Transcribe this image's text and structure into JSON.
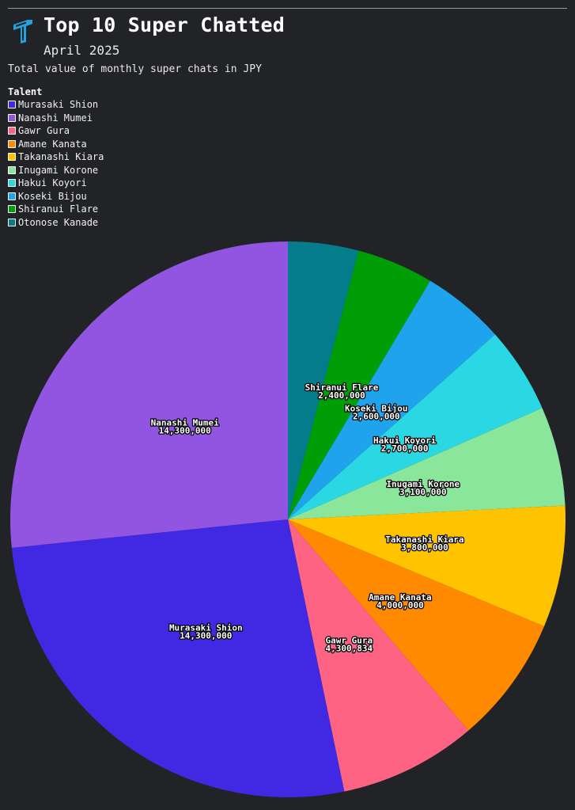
{
  "header": {
    "title": "Top 10 Super Chatted",
    "subtitle": "April 2025",
    "description": "Total value of monthly super chats in JPY"
  },
  "legend": {
    "title": "Talent"
  },
  "chart_data": {
    "type": "pie",
    "title": "Top 10 Super Chatted",
    "subtitle": "April 2025",
    "description": "Total value of monthly super chats in JPY",
    "legend_title": "Talent",
    "legend_position": "top-left",
    "start_angle_deg": 0,
    "direction": "clockwise",
    "slices": [
      {
        "name": "Otonose Kanade",
        "value": 2200000,
        "color": "#047c8c",
        "labeled": false
      },
      {
        "name": "Shiranui Flare",
        "value": 2400000,
        "color": "#009e06",
        "labeled": true
      },
      {
        "name": "Koseki Bijou",
        "value": 2600000,
        "color": "#1ea3ec",
        "labeled": true
      },
      {
        "name": "Hakui Koyori",
        "value": 2700000,
        "color": "#2ad8e3",
        "labeled": true
      },
      {
        "name": "Inugami Korone",
        "value": 3100000,
        "color": "#89e69b",
        "labeled": true
      },
      {
        "name": "Takanashi Kiara",
        "value": 3800000,
        "color": "#ffc300",
        "labeled": true
      },
      {
        "name": "Amane Kanata",
        "value": 4000000,
        "color": "#ff8a00",
        "labeled": true
      },
      {
        "name": "Gawr Gura",
        "value": 4300834,
        "color": "#ff6384",
        "labeled": true
      },
      {
        "name": "Murasaki Shion",
        "value": 14300000,
        "color": "#4129e3",
        "labeled": true
      },
      {
        "name": "Nanashi Mumei",
        "value": 14300000,
        "color": "#9155e2",
        "labeled": true
      }
    ],
    "legend_order": [
      "Murasaki Shion",
      "Nanashi Mumei",
      "Gawr Gura",
      "Amane Kanata",
      "Takanashi Kiara",
      "Inugami Korone",
      "Hakui Koyori",
      "Koseki Bijou",
      "Shiranui Flare",
      "Otonose Kanade"
    ]
  }
}
